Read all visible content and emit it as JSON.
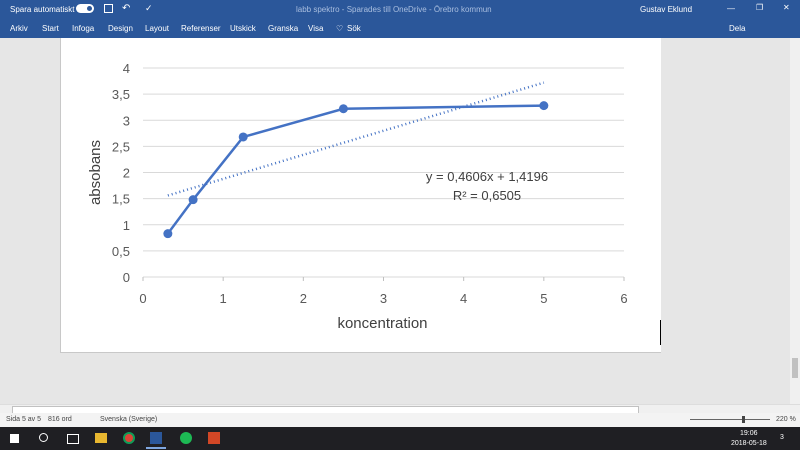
{
  "titlebar": {
    "autosave": "Spara automatiskt",
    "document": "labb spektro  -  Sparades till OneDrive  -  Örebro kommun",
    "user": "Gustav Eklund"
  },
  "ribbon": {
    "tabs": [
      "Arkiv",
      "Start",
      "Infoga",
      "Design",
      "Layout",
      "Referenser",
      "Utskick",
      "Granska",
      "Visa"
    ],
    "search": "Sök",
    "share": "Dela"
  },
  "chart_data": {
    "type": "line",
    "x": [
      0.31,
      0.625,
      1.25,
      2.5,
      5
    ],
    "series": [
      {
        "color": "#4472c4",
        "values": [
          0.83,
          1.48,
          2.68,
          3.22,
          3.28
        ]
      }
    ],
    "trendline": {
      "x": [
        0.31,
        5
      ],
      "values": [
        1.56,
        3.72
      ],
      "color": "#4472c4"
    },
    "x_label": "koncentration",
    "y_label": "absobans",
    "annotations": [
      "y = 0,4606x + 1,4196",
      "R² = 0,6505"
    ],
    "xlim": [
      0,
      6
    ],
    "xticks": [
      0,
      1,
      2,
      3,
      4,
      5,
      6
    ],
    "ylim": [
      0,
      4
    ],
    "yticks": [
      0,
      {
        "value": 0.5,
        "label": "0,5"
      },
      1,
      {
        "value": 1.5,
        "label": "1,5"
      },
      2,
      {
        "value": 2.5,
        "label": "2,5"
      },
      3,
      {
        "value": 3.5,
        "label": "3,5"
      },
      4
    ],
    "grid": true
  },
  "statusbar": {
    "page": "Sida 5 av 5",
    "words": "816 ord",
    "language": "Svenska (Sverige)",
    "zoom": "220 %"
  },
  "taskbar": {
    "time": "19:06",
    "date": "2018-05-18",
    "notifications": "3"
  }
}
